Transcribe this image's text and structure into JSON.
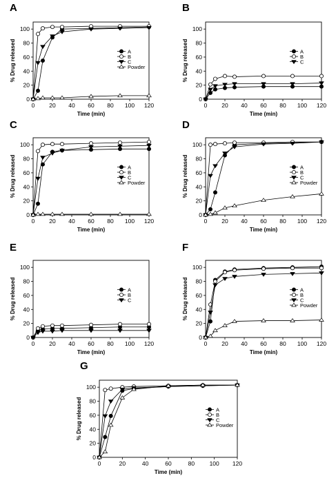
{
  "chart_data": [
    {
      "panel": "A",
      "type": "line",
      "xlabel": "Time (min)",
      "ylabel": "% Drug released",
      "xlim": [
        0,
        120
      ],
      "ylim": [
        0,
        110
      ],
      "xticks": [
        0,
        20,
        40,
        60,
        80,
        100,
        120
      ],
      "yticks": [
        0,
        20,
        40,
        60,
        80,
        100
      ],
      "legend": "center-right",
      "series": [
        {
          "name": "A",
          "marker": "filled-circle",
          "x": [
            0,
            5,
            10,
            20,
            30,
            60,
            90,
            120
          ],
          "y": [
            0,
            12,
            55,
            88,
            100,
            101,
            102,
            103
          ]
        },
        {
          "name": "B",
          "marker": "open-circle",
          "x": [
            0,
            5,
            10,
            20,
            30,
            60,
            90,
            120
          ],
          "y": [
            0,
            93,
            101,
            103,
            103,
            104,
            104,
            104
          ]
        },
        {
          "name": "C",
          "marker": "filled-triangle",
          "x": [
            0,
            5,
            10,
            20,
            30,
            60,
            90,
            120
          ],
          "y": [
            0,
            52,
            75,
            90,
            96,
            100,
            101,
            102
          ]
        },
        {
          "name": "Powder",
          "marker": "open-triangle",
          "x": [
            0,
            5,
            10,
            20,
            30,
            60,
            90,
            120
          ],
          "y": [
            0,
            1,
            2,
            2,
            2,
            4,
            5,
            5
          ]
        }
      ]
    },
    {
      "panel": "B",
      "type": "line",
      "xlabel": "Time (min)",
      "ylabel": "% Drug released",
      "xlim": [
        0,
        120
      ],
      "ylim": [
        0,
        110
      ],
      "xticks": [
        0,
        20,
        40,
        60,
        80,
        100,
        120
      ],
      "yticks": [
        0,
        20,
        40,
        60,
        80,
        100
      ],
      "legend": "center-right",
      "series": [
        {
          "name": "A",
          "marker": "filled-circle",
          "x": [
            0,
            5,
            10,
            20,
            30,
            60,
            90,
            120
          ],
          "y": [
            0,
            9,
            14,
            16,
            17,
            18,
            18,
            18
          ]
        },
        {
          "name": "B",
          "marker": "open-circle",
          "x": [
            0,
            5,
            10,
            20,
            30,
            60,
            90,
            120
          ],
          "y": [
            0,
            21,
            29,
            33,
            32,
            33,
            33,
            33
          ]
        },
        {
          "name": "C",
          "marker": "filled-triangle",
          "x": [
            0,
            5,
            10,
            20,
            30,
            60,
            90,
            120
          ],
          "y": [
            0,
            14,
            19,
            21,
            22,
            22,
            22,
            23
          ]
        }
      ]
    },
    {
      "panel": "C",
      "type": "line",
      "xlabel": "Time (min)",
      "ylabel": "% Drug released",
      "xlim": [
        0,
        120
      ],
      "ylim": [
        0,
        110
      ],
      "xticks": [
        0,
        20,
        40,
        60,
        80,
        100,
        120
      ],
      "yticks": [
        0,
        20,
        40,
        60,
        80,
        100
      ],
      "legend": "center-right",
      "series": [
        {
          "name": "A",
          "marker": "filled-circle",
          "x": [
            0,
            5,
            10,
            20,
            30,
            60,
            90,
            120
          ],
          "y": [
            0,
            16,
            72,
            90,
            92,
            93,
            94,
            94
          ]
        },
        {
          "name": "B",
          "marker": "open-circle",
          "x": [
            0,
            5,
            10,
            20,
            30,
            60,
            90,
            120
          ],
          "y": [
            0,
            91,
            100,
            101,
            101,
            102,
            103,
            104
          ]
        },
        {
          "name": "C",
          "marker": "filled-triangle",
          "x": [
            0,
            5,
            10,
            20,
            30,
            60,
            90,
            120
          ],
          "y": [
            0,
            52,
            82,
            88,
            92,
            97,
            98,
            99
          ]
        },
        {
          "name": "Powder",
          "marker": "open-triangle",
          "x": [
            0,
            5,
            10,
            20,
            30,
            60,
            90,
            120
          ],
          "y": [
            0,
            1,
            1,
            1,
            1,
            1,
            1,
            1
          ]
        }
      ]
    },
    {
      "panel": "D",
      "type": "line",
      "xlabel": "Time (min)",
      "ylabel": "% Drug released",
      "xlim": [
        0,
        120
      ],
      "ylim": [
        0,
        110
      ],
      "xticks": [
        0,
        20,
        40,
        60,
        80,
        100,
        120
      ],
      "yticks": [
        0,
        20,
        40,
        60,
        80,
        100
      ],
      "legend": "center-right",
      "series": [
        {
          "name": "A",
          "marker": "filled-circle",
          "x": [
            0,
            5,
            10,
            20,
            30,
            60,
            90,
            120
          ],
          "y": [
            0,
            8,
            32,
            85,
            100,
            102,
            103,
            104
          ]
        },
        {
          "name": "B",
          "marker": "open-circle",
          "x": [
            0,
            5,
            10,
            20,
            30,
            60,
            90,
            120
          ],
          "y": [
            0,
            100,
            101,
            102,
            103,
            103,
            104,
            104
          ]
        },
        {
          "name": "C",
          "marker": "filled-triangle",
          "x": [
            0,
            5,
            10,
            20,
            30,
            60,
            90,
            120
          ],
          "y": [
            0,
            56,
            70,
            88,
            97,
            101,
            102,
            104
          ]
        },
        {
          "name": "Powder",
          "marker": "open-triangle",
          "x": [
            0,
            5,
            10,
            20,
            30,
            60,
            90,
            120
          ],
          "y": [
            0,
            1,
            3,
            10,
            13,
            21,
            26,
            30
          ]
        }
      ]
    },
    {
      "panel": "E",
      "type": "line",
      "xlabel": "Time (min)",
      "ylabel": "% Drug released",
      "xlim": [
        0,
        120
      ],
      "ylim": [
        0,
        110
      ],
      "xticks": [
        0,
        20,
        40,
        60,
        80,
        100,
        120
      ],
      "yticks": [
        0,
        20,
        40,
        60,
        80,
        100
      ],
      "legend": "center-right",
      "series": [
        {
          "name": "A",
          "marker": "filled-circle",
          "x": [
            0,
            5,
            10,
            20,
            30,
            60,
            90,
            120
          ],
          "y": [
            0,
            10,
            12,
            13,
            13,
            14,
            15,
            15
          ]
        },
        {
          "name": "B",
          "marker": "open-circle",
          "x": [
            0,
            5,
            10,
            20,
            30,
            60,
            90,
            120
          ],
          "y": [
            0,
            13,
            16,
            17,
            17,
            18,
            19,
            19
          ]
        },
        {
          "name": "C",
          "marker": "filled-triangle",
          "x": [
            0,
            5,
            10,
            20,
            30,
            60,
            90,
            120
          ],
          "y": [
            0,
            7,
            9,
            9,
            10,
            10,
            10,
            10
          ]
        }
      ]
    },
    {
      "panel": "F",
      "type": "line",
      "xlabel": "Time (min)",
      "ylabel": "% Drug released",
      "xlim": [
        0,
        120
      ],
      "ylim": [
        0,
        110
      ],
      "xticks": [
        0,
        20,
        40,
        60,
        80,
        100,
        120
      ],
      "yticks": [
        0,
        20,
        40,
        60,
        80,
        100
      ],
      "legend": "center-right",
      "series": [
        {
          "name": "A",
          "marker": "filled-circle",
          "x": [
            0,
            5,
            10,
            20,
            30,
            60,
            90,
            120
          ],
          "y": [
            0,
            23,
            82,
            94,
            97,
            99,
            100,
            101
          ]
        },
        {
          "name": "B",
          "marker": "open-circle",
          "x": [
            0,
            5,
            10,
            20,
            30,
            60,
            90,
            120
          ],
          "y": [
            0,
            47,
            80,
            93,
            96,
            98,
            99,
            99
          ]
        },
        {
          "name": "C",
          "marker": "filled-triangle",
          "x": [
            0,
            5,
            10,
            20,
            30,
            60,
            90,
            120
          ],
          "y": [
            0,
            36,
            75,
            84,
            87,
            90,
            91,
            92
          ]
        },
        {
          "name": "Powder",
          "marker": "open-triangle",
          "x": [
            0,
            5,
            10,
            20,
            30,
            60,
            90,
            120
          ],
          "y": [
            0,
            2,
            10,
            17,
            23,
            24,
            24,
            25
          ]
        }
      ]
    },
    {
      "panel": "G",
      "type": "line",
      "xlabel": "Time (min)",
      "ylabel": "% Drug released",
      "xlim": [
        0,
        120
      ],
      "ylim": [
        0,
        110
      ],
      "xticks": [
        0,
        20,
        40,
        60,
        80,
        100,
        120
      ],
      "yticks": [
        0,
        20,
        40,
        60,
        80,
        100
      ],
      "legend": "center-right",
      "series": [
        {
          "name": "A",
          "marker": "filled-circle",
          "x": [
            0,
            5,
            10,
            20,
            30,
            60,
            90,
            120
          ],
          "y": [
            0,
            29,
            59,
            95,
            98,
            101,
            102,
            103
          ]
        },
        {
          "name": "B",
          "marker": "open-circle",
          "x": [
            0,
            5,
            10,
            20,
            30,
            60,
            90,
            120
          ],
          "y": [
            0,
            96,
            98,
            100,
            101,
            102,
            103,
            103
          ]
        },
        {
          "name": "C",
          "marker": "filled-triangle",
          "x": [
            0,
            5,
            10,
            20,
            30,
            60,
            90,
            120
          ],
          "y": [
            0,
            59,
            80,
            97,
            99,
            101,
            102,
            103
          ]
        },
        {
          "name": "Powder",
          "marker": "open-triangle",
          "x": [
            0,
            5,
            10,
            20,
            30,
            60,
            90,
            120
          ],
          "y": [
            0,
            8,
            46,
            85,
            97,
            102,
            103,
            103
          ]
        }
      ]
    }
  ]
}
